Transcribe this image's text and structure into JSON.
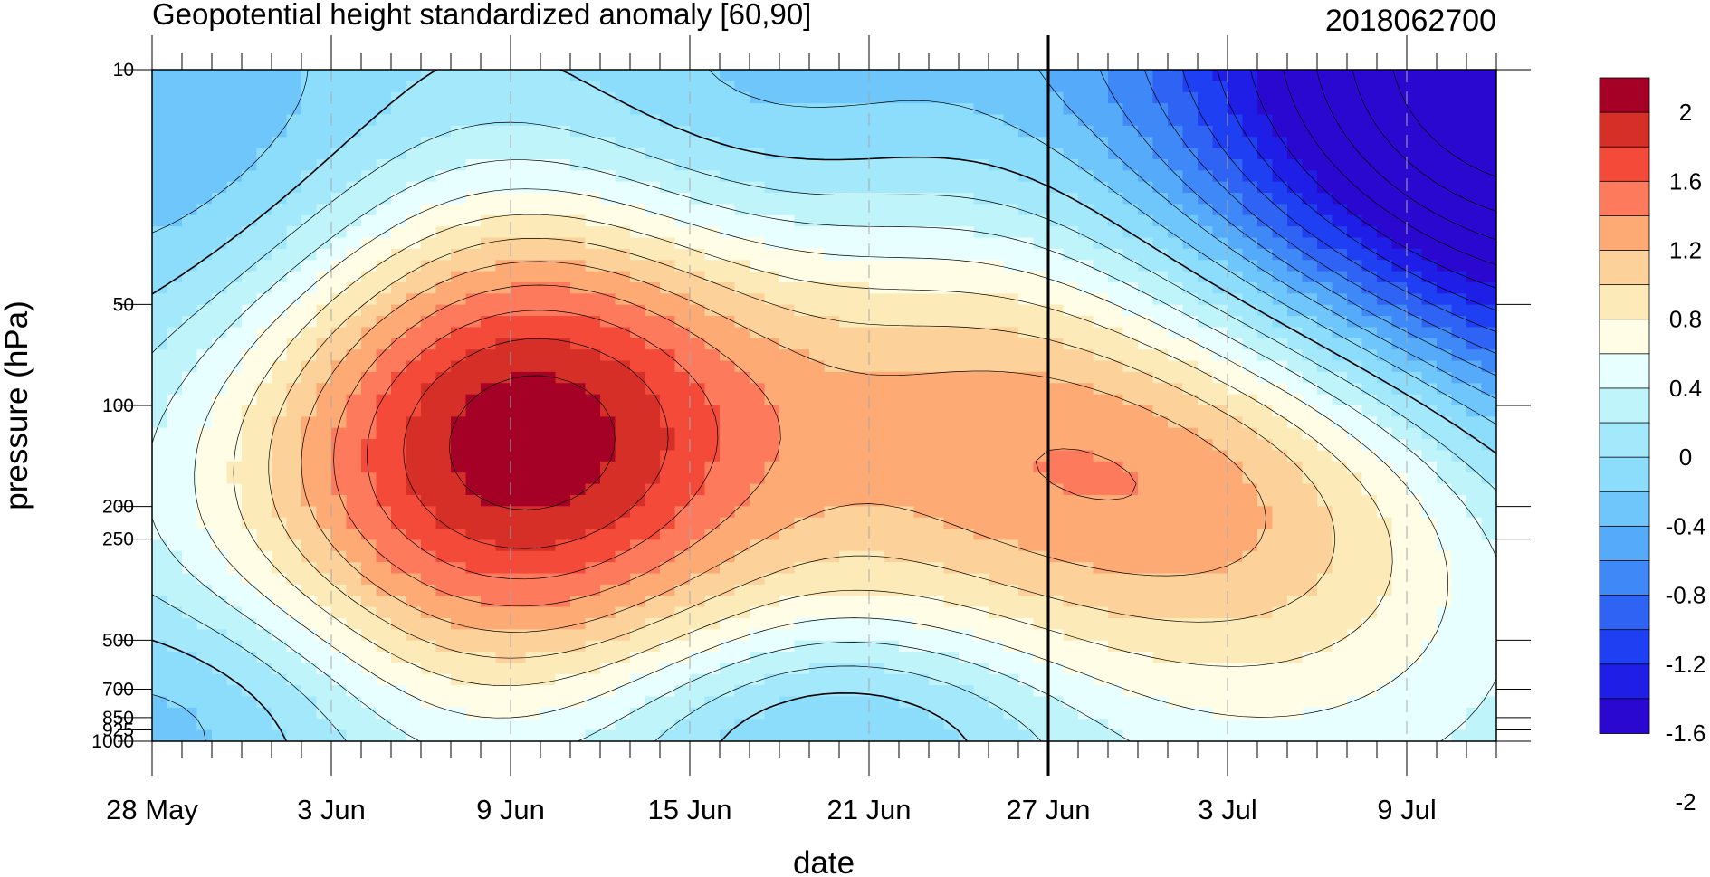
{
  "chart_data": {
    "type": "heatmap",
    "title": "Geopotential height standardized anomaly [60,90]",
    "date_label": "2018062700",
    "xlabel": "date",
    "ylabel": "pressure (hPa)",
    "x_range": [
      "28 May",
      "12 Jul"
    ],
    "x_ticks": [
      "28 May",
      "3 Jun",
      "9 Jun",
      "15 Jun",
      "21 Jun",
      "27 Jun",
      "3 Jul",
      "9 Jul"
    ],
    "x_tick_days": [
      0,
      6,
      12,
      18,
      24,
      30,
      36,
      42
    ],
    "x_end_day": 45,
    "y_scale": "log",
    "y_range": [
      1000,
      10
    ],
    "y_ticks": [
      "10",
      "50",
      "100",
      "200",
      "250",
      "500",
      "700",
      "850",
      "925",
      "1000"
    ],
    "y_tick_values": [
      10,
      50,
      100,
      200,
      250,
      500,
      700,
      850,
      925,
      1000
    ],
    "vertical_marker_day": 30,
    "colorbar": {
      "labels": [
        "2",
        "1.6",
        "1.2",
        "0.8",
        "0.4",
        "0",
        "-0.4",
        "-0.8",
        "-1.2",
        "-1.6",
        "-2"
      ],
      "label_values": [
        2,
        1.6,
        1.2,
        0.8,
        0.4,
        0,
        -0.4,
        -0.8,
        -1.2,
        -1.6,
        -2
      ],
      "colors": [
        "#a50026",
        "#d62f27",
        "#f44a3a",
        "#fd7b5c",
        "#fdaa75",
        "#fcd19a",
        "#fcebb8",
        "#fffde6",
        "#e7ffff",
        "#bff4fb",
        "#a3e8fb",
        "#8cdcfb",
        "#6fc6fb",
        "#55aafa",
        "#3f88f7",
        "#2e63f4",
        "#1f3ff2",
        "#1e1ee6",
        "#2a08d0"
      ],
      "levels": [
        2.2,
        2.0,
        1.8,
        1.6,
        1.4,
        1.2,
        1.0,
        0.8,
        0.6,
        0.4,
        0.2,
        0.0,
        -0.2,
        -0.4,
        -0.6,
        -0.8,
        -1.0,
        -1.2,
        -1.4,
        -1.6,
        -1.8,
        -2.0,
        -2.2
      ]
    },
    "blobs": [
      {
        "day": 8.2,
        "p": 130,
        "sd": 6.0,
        "sp": 0.55,
        "a": 1.1
      },
      {
        "day": 14.4,
        "p": 120,
        "sd": 5.5,
        "sp": 0.55,
        "a": 1.3
      },
      {
        "day": 27.0,
        "p": 95,
        "sd": 6.5,
        "sp": 0.55,
        "a": 0.85
      },
      {
        "day": 38.0,
        "p": 140,
        "sd": 7.5,
        "sp": 0.45,
        "a": 1.15
      },
      {
        "day": 40.5,
        "p": 400,
        "sd": 9.0,
        "sp": 0.6,
        "a": 0.55
      },
      {
        "day": 2.0,
        "p": 20,
        "sd": 6.0,
        "sp": 0.45,
        "a": -0.55
      },
      {
        "day": 20.0,
        "p": 14,
        "sd": 6.0,
        "sp": 0.35,
        "a": -0.5
      },
      {
        "day": 1.5,
        "p": 820,
        "sd": 4.5,
        "sp": 0.25,
        "a": -0.45
      },
      {
        "day": 23.0,
        "p": 900,
        "sd": 5.5,
        "sp": 0.22,
        "a": -0.55
      },
      {
        "day": 46.0,
        "p": 10,
        "sd": 9.0,
        "sp": 0.9,
        "a": -2.6
      }
    ]
  }
}
